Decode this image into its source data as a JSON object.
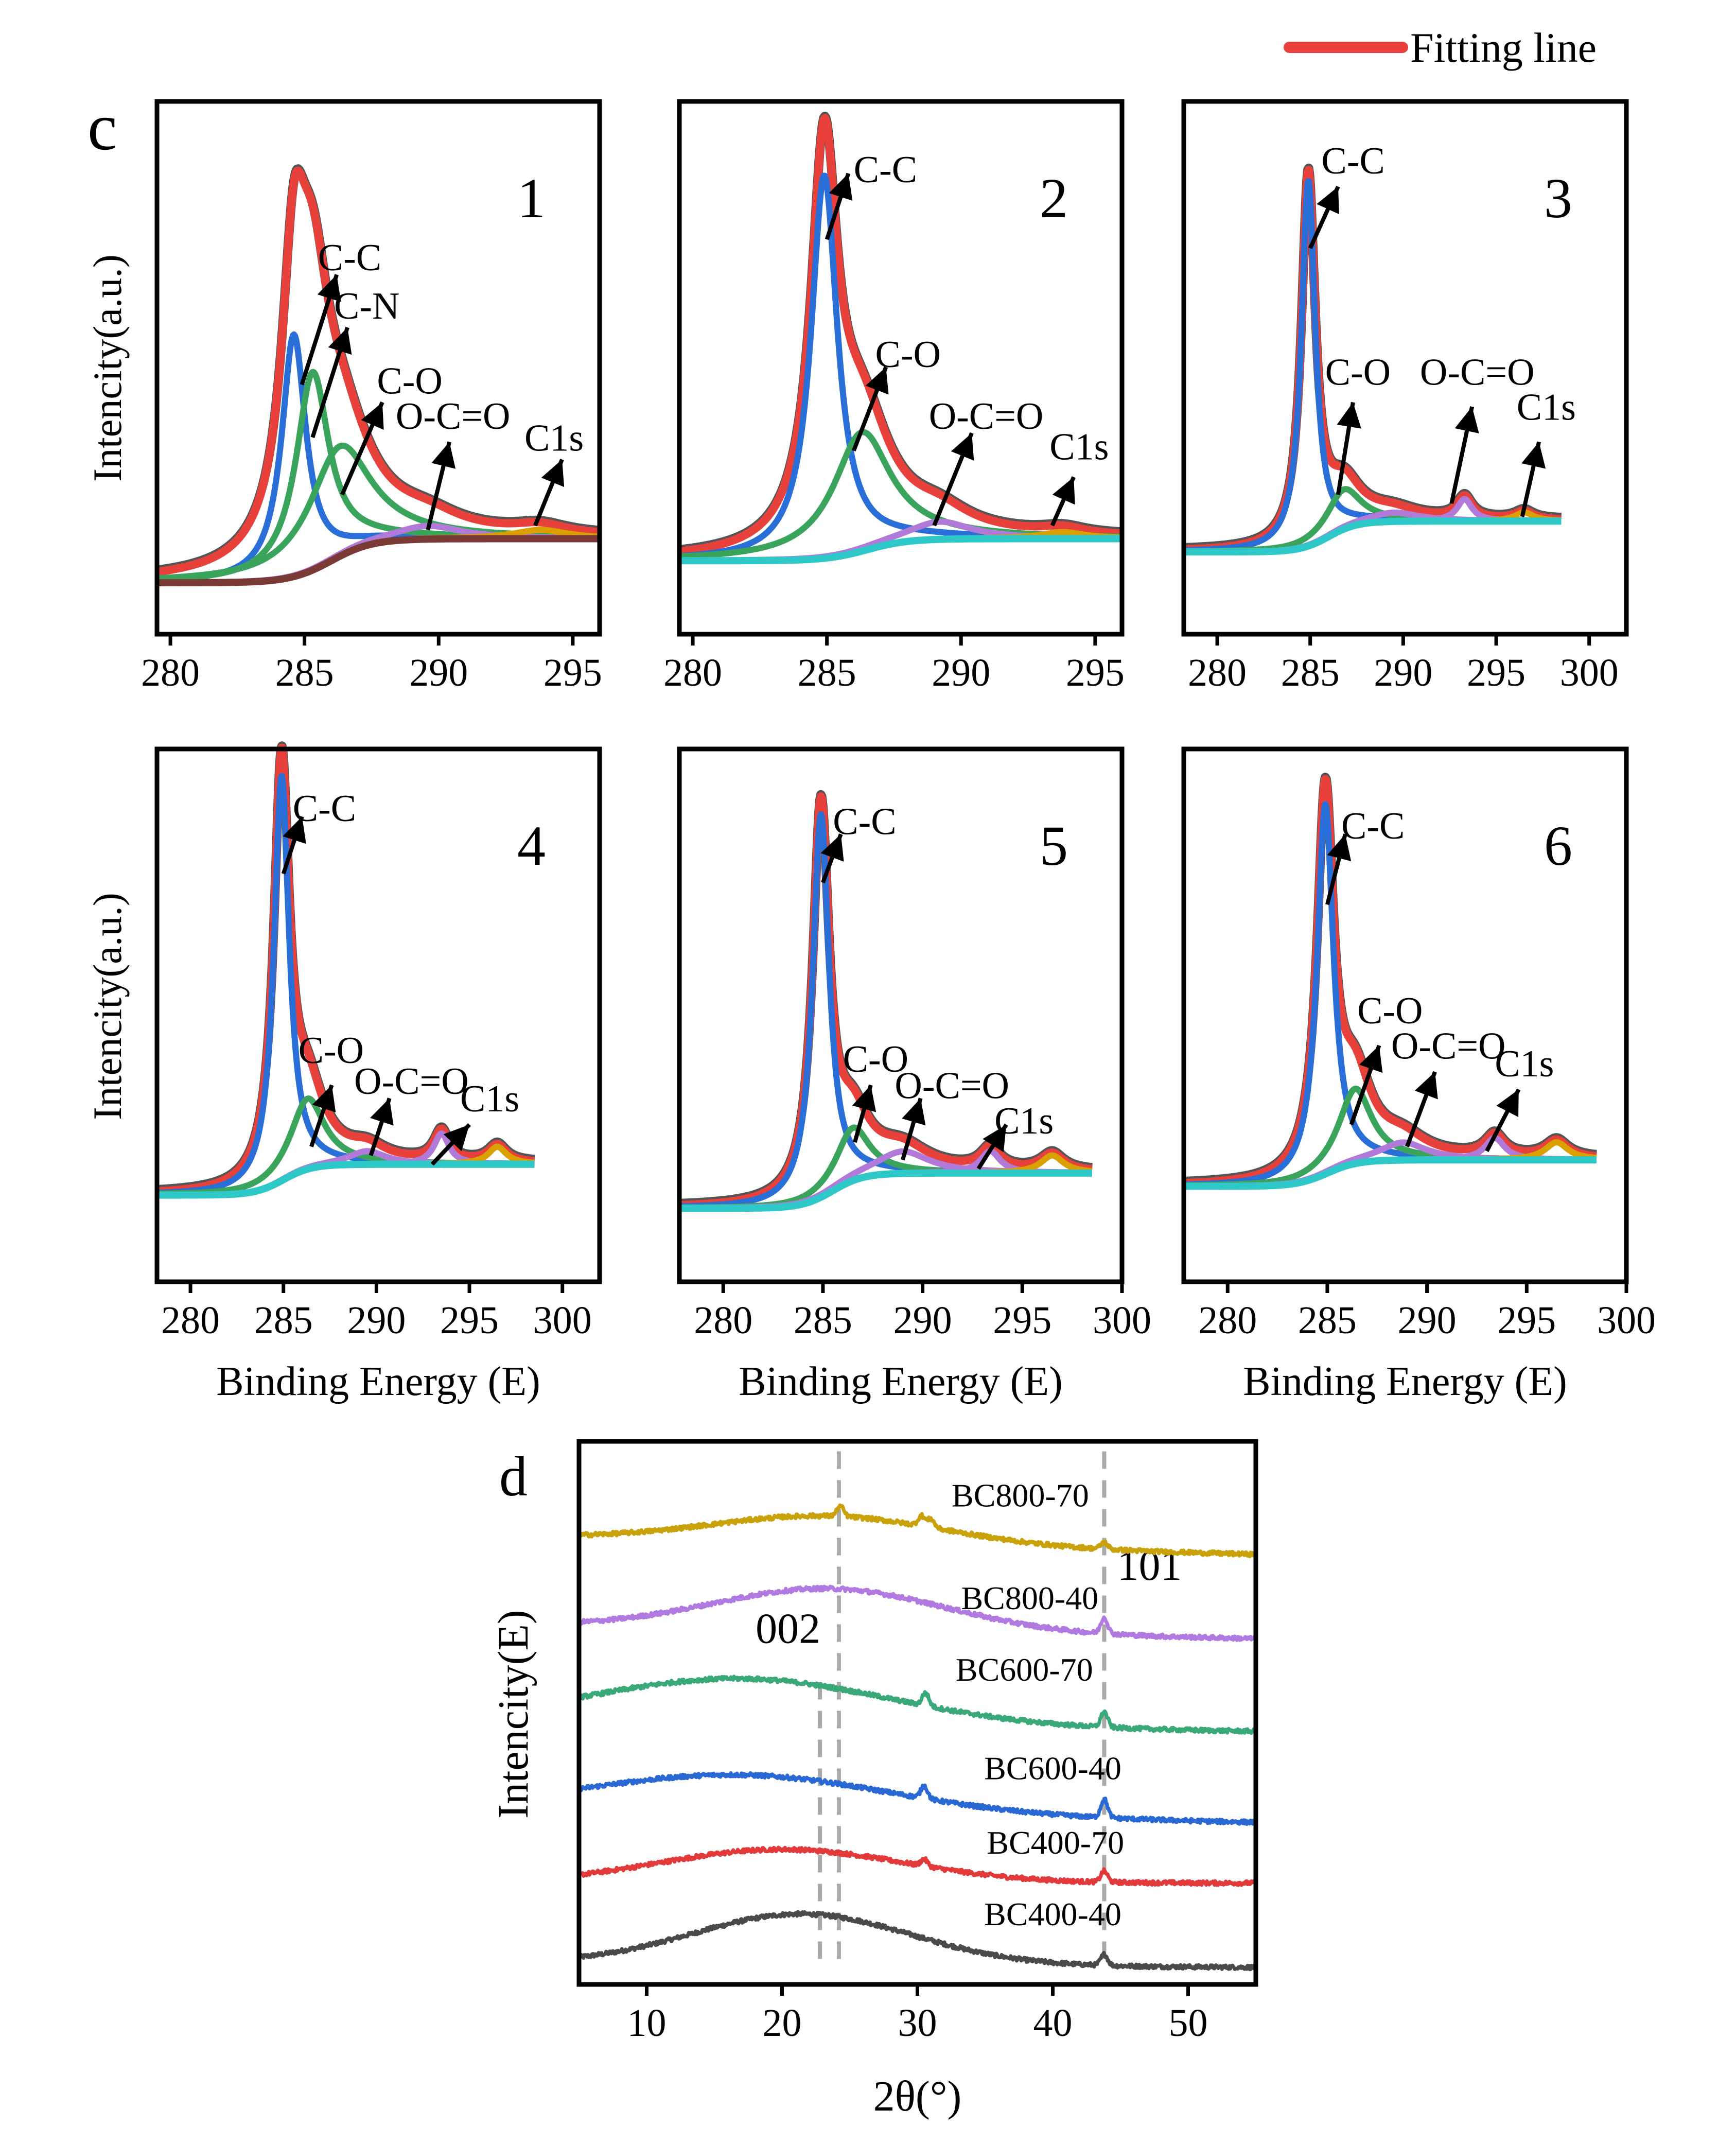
{
  "figure": {
    "legend": {
      "label": "Fitting line",
      "color": "#e8413b"
    },
    "panel_c_letter": "c",
    "panel_d_letter": "d",
    "ylabel_c": "Intencity(a.u.)",
    "xlabel_c": "Binding Energy (E)"
  },
  "colors": {
    "fit": "#e8413b",
    "raw": "#555555",
    "cc": "#2a6ed8",
    "cn": "#3aa35c",
    "co": "#3aa35c",
    "occo": "#b27ad8",
    "c1s": "#d9a000",
    "baseline": "#2ec8c8",
    "baseline_p1": "#7a3b36"
  },
  "chart_data": [
    {
      "type": "line",
      "panel": "c",
      "id": "xps-1",
      "number": "1",
      "xlabel": "",
      "ylabel": "Intencity(a.u.)",
      "xlim": [
        279.5,
        296
      ],
      "xticks": [
        280,
        285,
        290,
        295
      ],
      "components": [
        {
          "name": "C-C",
          "center": 284.6,
          "height": 0.55,
          "width": 0.55
        },
        {
          "name": "C-N",
          "center": 285.3,
          "height": 0.45,
          "width": 0.75
        },
        {
          "name": "C-O",
          "center": 286.3,
          "height": 0.25,
          "width": 1.4
        },
        {
          "name": "O-C=O",
          "center": 289.6,
          "height": 0.03,
          "width": 1.5
        },
        {
          "name": "C1s",
          "center": 293.8,
          "height": 0.02,
          "width": 1.2
        }
      ],
      "baseline": {
        "start": 0.0,
        "end": 0.1,
        "step_at": 286.0
      },
      "labels": [
        {
          "text": "C-C",
          "at": [
            285.5,
            0.71
          ],
          "arrow_from": [
            284.9,
            0.45
          ],
          "arrow_to": [
            286.2,
            0.7
          ]
        },
        {
          "text": "C-N",
          "at": [
            286.1,
            0.6
          ],
          "arrow_from": [
            285.3,
            0.33
          ],
          "arrow_to": [
            286.6,
            0.58
          ]
        },
        {
          "text": "C-O",
          "at": [
            287.7,
            0.43
          ],
          "arrow_from": [
            286.4,
            0.2
          ],
          "arrow_to": [
            287.9,
            0.41
          ]
        },
        {
          "text": "O-C=O",
          "at": [
            288.4,
            0.35
          ],
          "arrow_from": [
            289.6,
            0.12
          ],
          "arrow_to": [
            290.4,
            0.32
          ]
        },
        {
          "text": "C1s",
          "at": [
            293.2,
            0.3
          ],
          "arrow_from": [
            293.6,
            0.13
          ],
          "arrow_to": [
            294.6,
            0.28
          ]
        }
      ]
    },
    {
      "type": "line",
      "panel": "c",
      "id": "xps-2",
      "number": "2",
      "xlabel": "",
      "ylabel": "",
      "xlim": [
        279.5,
        296
      ],
      "xticks": [
        280,
        285,
        290,
        295
      ],
      "components": [
        {
          "name": "C-C",
          "center": 284.9,
          "height": 0.87,
          "width": 0.6
        },
        {
          "name": "C-O",
          "center": 286.3,
          "height": 0.27,
          "width": 1.3
        },
        {
          "name": "O-C=O",
          "center": 289.2,
          "height": 0.04,
          "width": 1.4
        },
        {
          "name": "C1s",
          "center": 293.8,
          "height": 0.015,
          "width": 1.0
        }
      ],
      "baseline": {
        "start": 0.05,
        "end": 0.1,
        "step_at": 286.5
      },
      "labels": [
        {
          "text": "C-C",
          "at": [
            286.0,
            0.91
          ],
          "arrow_from": [
            285.0,
            0.78
          ],
          "arrow_to": [
            285.8,
            0.93
          ]
        },
        {
          "text": "C-O",
          "at": [
            286.8,
            0.49
          ],
          "arrow_from": [
            286.0,
            0.3
          ],
          "arrow_to": [
            287.2,
            0.49
          ]
        },
        {
          "text": "O-C=O",
          "at": [
            288.8,
            0.35
          ],
          "arrow_from": [
            289.0,
            0.13
          ],
          "arrow_to": [
            290.4,
            0.34
          ]
        },
        {
          "text": "C1s",
          "at": [
            293.3,
            0.28
          ],
          "arrow_from": [
            293.4,
            0.13
          ],
          "arrow_to": [
            294.2,
            0.24
          ]
        }
      ]
    },
    {
      "type": "line",
      "panel": "c",
      "id": "xps-3",
      "number": "3",
      "xlabel": "",
      "ylabel": "",
      "xlim": [
        278.2,
        302
      ],
      "xticks": [
        280,
        285,
        290,
        295,
        300
      ],
      "xmax_data": 298.5,
      "components": [
        {
          "name": "C-C",
          "center": 284.9,
          "height": 0.83,
          "width": 0.45
        },
        {
          "name": "C-O",
          "center": 286.8,
          "height": 0.09,
          "width": 1.1
        },
        {
          "name": "O-C=O",
          "center": 289.5,
          "height": 0.02,
          "width": 1.6
        },
        {
          "name": "O-C=O",
          "center": 293.3,
          "height": 0.05,
          "width": 0.5
        },
        {
          "name": "C1s",
          "center": 296.5,
          "height": 0.02,
          "width": 0.6
        }
      ],
      "baseline": {
        "start": 0.07,
        "end": 0.14,
        "step_at": 286.0
      },
      "labels": [
        {
          "text": "C-C",
          "at": [
            285.6,
            0.93
          ],
          "arrow_from": [
            285.0,
            0.76
          ],
          "arrow_to": [
            286.5,
            0.9
          ]
        },
        {
          "text": "C-O",
          "at": [
            285.8,
            0.45
          ],
          "arrow_from": [
            286.5,
            0.2
          ],
          "arrow_to": [
            287.3,
            0.41
          ]
        },
        {
          "text": "O-C=O",
          "at": [
            290.9,
            0.45
          ],
          "arrow_from": [
            292.6,
            0.18
          ],
          "arrow_to": [
            293.7,
            0.4
          ]
        },
        {
          "text": "C1s",
          "at": [
            296.1,
            0.37
          ],
          "arrow_from": [
            296.4,
            0.15
          ],
          "arrow_to": [
            297.3,
            0.32
          ]
        }
      ]
    },
    {
      "type": "line",
      "panel": "c",
      "id": "xps-4",
      "number": "4",
      "xlabel": "Binding Energy (E)",
      "ylabel": "Intencity(a.u.)",
      "xlim": [
        278.2,
        302
      ],
      "xticks": [
        280,
        285,
        290,
        295,
        300
      ],
      "xmax_data": 298.5,
      "components": [
        {
          "name": "C-C",
          "center": 284.9,
          "height": 0.92,
          "width": 0.5
        },
        {
          "name": "C-O",
          "center": 286.3,
          "height": 0.16,
          "width": 1.1
        },
        {
          "name": "O-C=O",
          "center": 289.5,
          "height": 0.03,
          "width": 1.2
        },
        {
          "name": "O-C=O",
          "center": 293.5,
          "height": 0.07,
          "width": 0.5
        },
        {
          "name": "C1s",
          "center": 296.5,
          "height": 0.04,
          "width": 0.6
        }
      ],
      "baseline": {
        "start": 0.08,
        "end": 0.15,
        "step_at": 285.0
      },
      "labels": [
        {
          "text": "C-C",
          "at": [
            285.5,
            0.93
          ],
          "arrow_from": [
            285.0,
            0.81
          ],
          "arrow_to": [
            286.0,
            0.94
          ]
        },
        {
          "text": "C-O",
          "at": [
            285.8,
            0.38
          ],
          "arrow_from": [
            286.5,
            0.19
          ],
          "arrow_to": [
            287.6,
            0.33
          ]
        },
        {
          "text": "O-C=O",
          "at": [
            288.8,
            0.31
          ],
          "arrow_from": [
            289.7,
            0.17
          ],
          "arrow_to": [
            290.7,
            0.3
          ]
        },
        {
          "text": "C1s",
          "at": [
            294.5,
            0.27
          ],
          "arrow_from": [
            293.0,
            0.15
          ],
          "arrow_to": [
            295.0,
            0.24
          ]
        }
      ]
    },
    {
      "type": "line",
      "panel": "c",
      "id": "xps-5",
      "number": "5",
      "xlabel": "Binding Energy (E)",
      "ylabel": "",
      "xlim": [
        277.8,
        300
      ],
      "xticks": [
        280,
        285,
        290,
        295,
        300
      ],
      "xmax_data": 298.5,
      "components": [
        {
          "name": "C-C",
          "center": 284.9,
          "height": 0.87,
          "width": 0.5
        },
        {
          "name": "C-O",
          "center": 286.5,
          "height": 0.12,
          "width": 1.0
        },
        {
          "name": "O-C=O",
          "center": 289.0,
          "height": 0.05,
          "width": 1.6
        },
        {
          "name": "O-C=O",
          "center": 293.4,
          "height": 0.05,
          "width": 0.6
        },
        {
          "name": "C1s",
          "center": 296.5,
          "height": 0.04,
          "width": 0.7
        }
      ],
      "baseline": {
        "start": 0.05,
        "end": 0.13,
        "step_at": 285.5
      },
      "labels": [
        {
          "text": "C-C",
          "at": [
            285.5,
            0.9
          ],
          "arrow_from": [
            285.0,
            0.79
          ],
          "arrow_to": [
            285.9,
            0.9
          ]
        },
        {
          "text": "C-O",
          "at": [
            286.0,
            0.36
          ],
          "arrow_from": [
            286.6,
            0.2
          ],
          "arrow_to": [
            287.4,
            0.33
          ]
        },
        {
          "text": "O-C=O",
          "at": [
            288.6,
            0.3
          ],
          "arrow_from": [
            289.0,
            0.16
          ],
          "arrow_to": [
            289.9,
            0.3
          ]
        },
        {
          "text": "C1s",
          "at": [
            293.6,
            0.22
          ],
          "arrow_from": [
            292.8,
            0.14
          ],
          "arrow_to": [
            294.2,
            0.24
          ]
        }
      ]
    },
    {
      "type": "line",
      "panel": "c",
      "id": "xps-6",
      "number": "6",
      "xlabel": "Binding Energy (E)",
      "ylabel": "",
      "xlim": [
        277.8,
        300
      ],
      "xticks": [
        280,
        285,
        290,
        295,
        300
      ],
      "xmax_data": 298.5,
      "components": [
        {
          "name": "C-C",
          "center": 284.9,
          "height": 0.84,
          "width": 0.5
        },
        {
          "name": "C-O",
          "center": 286.4,
          "height": 0.17,
          "width": 1.0
        },
        {
          "name": "O-C=O",
          "center": 288.8,
          "height": 0.04,
          "width": 1.4
        },
        {
          "name": "O-C=O",
          "center": 293.4,
          "height": 0.05,
          "width": 0.6
        },
        {
          "name": "C1s",
          "center": 296.5,
          "height": 0.04,
          "width": 0.7
        }
      ],
      "baseline": {
        "start": 0.1,
        "end": 0.16,
        "step_at": 285.0
      },
      "labels": [
        {
          "text": "C-C",
          "at": [
            285.7,
            0.89
          ],
          "arrow_from": [
            285.0,
            0.74
          ],
          "arrow_to": [
            285.9,
            0.9
          ]
        },
        {
          "text": "C-O",
          "at": [
            286.5,
            0.47
          ],
          "arrow_from": [
            286.2,
            0.24
          ],
          "arrow_to": [
            287.6,
            0.42
          ]
        },
        {
          "text": "O-C=O",
          "at": [
            288.2,
            0.39
          ],
          "arrow_from": [
            289.0,
            0.19
          ],
          "arrow_to": [
            290.4,
            0.36
          ]
        },
        {
          "text": "C1s",
          "at": [
            293.4,
            0.35
          ],
          "arrow_from": [
            293.0,
            0.18
          ],
          "arrow_to": [
            294.6,
            0.32
          ]
        }
      ]
    },
    {
      "type": "line",
      "panel": "d",
      "id": "xrd",
      "xlabel": "2θ(°)",
      "ylabel": "Intencity(E)",
      "xlim": [
        5,
        55
      ],
      "xticks": [
        10,
        20,
        30,
        40,
        50
      ],
      "ylim": [
        0,
        6.2
      ],
      "reference_lines": [
        {
          "x": 22.8,
          "label": "002",
          "y_top": 3.52
        },
        {
          "x": 24.2,
          "label": "",
          "y_top": 6.2
        },
        {
          "x": 43.8,
          "label": "101",
          "y_top": 6.2
        }
      ],
      "series": [
        {
          "name": "BC400-40",
          "color": "#4a4a4a",
          "offset": 0.1,
          "amp": 0.6,
          "center": 21.5,
          "sigma": 8.0,
          "tail": -0.05,
          "sharp": [
            [
              43.8,
              0.13
            ]
          ],
          "label_x": 40.0,
          "label_y": 0.55
        },
        {
          "name": "BC400-70",
          "color": "#e23a3a",
          "offset": 1.05,
          "amp": 0.4,
          "center": 20.0,
          "sigma": 9.0,
          "tail": 0.0,
          "sharp": [
            [
              30.5,
              0.08
            ],
            [
              43.8,
              0.13
            ]
          ],
          "label_x": 40.2,
          "label_y": 1.4
        },
        {
          "name": "BC600-40",
          "color": "#2a68d4",
          "offset": 1.92,
          "amp": 0.45,
          "center": 17.0,
          "sigma": 11.0,
          "tail": -0.15,
          "sharp": [
            [
              30.5,
              0.15
            ],
            [
              43.8,
              0.22
            ]
          ],
          "label_x": 40.0,
          "label_y": 2.28
        },
        {
          "name": "BC600-70",
          "color": "#3aa878",
          "offset": 2.95,
          "amp": 0.55,
          "center": 17.0,
          "sigma": 11.0,
          "tail": -0.1,
          "sharp": [
            [
              30.6,
              0.15
            ],
            [
              43.8,
              0.18
            ]
          ],
          "label_x": 37.9,
          "label_y": 3.45
        },
        {
          "name": "BC800-40",
          "color": "#b07ae0",
          "offset": 4.1,
          "amp": 0.5,
          "center": 23.5,
          "sigma": 8.5,
          "tail": -0.15,
          "sharp": [
            [
              43.8,
              0.19
            ]
          ],
          "label_x": 38.3,
          "label_y": 4.3
        },
        {
          "name": "BC800-70",
          "color": "#c9a10a",
          "offset": 5.15,
          "amp": 0.33,
          "center": 23.5,
          "sigma": 8.5,
          "tail": -0.2,
          "sharp": [
            [
              24.3,
              0.12
            ],
            [
              30.3,
              0.12
            ],
            [
              31.0,
              0.1
            ],
            [
              43.8,
              0.08
            ]
          ],
          "label_x": 37.6,
          "label_y": 5.52
        }
      ]
    }
  ]
}
